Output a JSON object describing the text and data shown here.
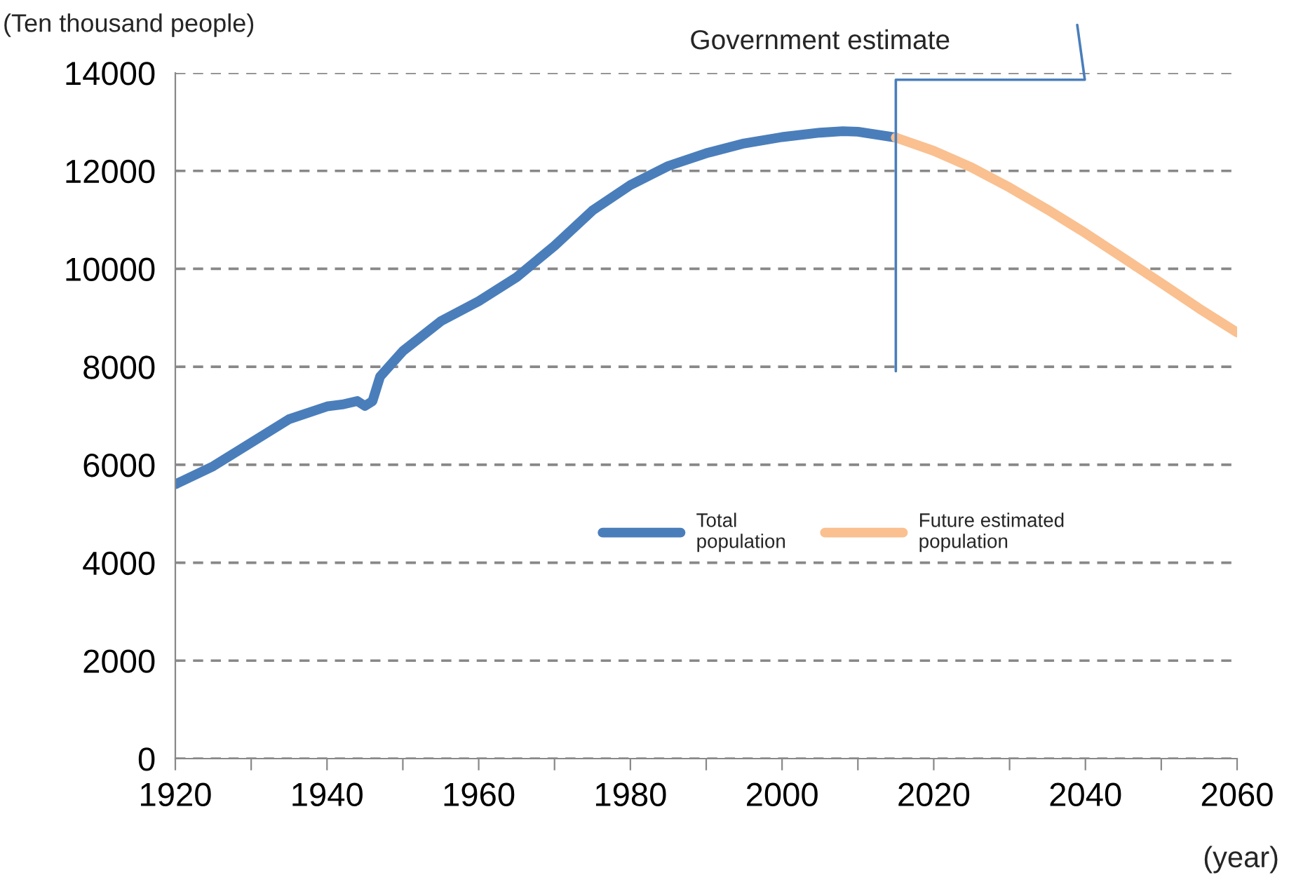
{
  "chart_data": {
    "type": "line",
    "ylabel": "(Ten thousand people)",
    "xlabel": "(year)",
    "series": [
      {
        "name": "Total\npopulation",
        "color": "#4a7ebb",
        "x": [
          1920,
          1925,
          1930,
          1935,
          1940,
          1942,
          1944,
          1945,
          1946,
          1947,
          1950,
          1955,
          1960,
          1965,
          1970,
          1975,
          1980,
          1985,
          1990,
          1995,
          2000,
          2005,
          2008,
          2010,
          2015
        ],
        "values": [
          5600,
          5970,
          6450,
          6930,
          7190,
          7230,
          7300,
          7200,
          7300,
          7800,
          8320,
          8930,
          9340,
          9830,
          10470,
          11190,
          11710,
          12100,
          12360,
          12560,
          12690,
          12780,
          12810,
          12800,
          12680
        ]
      },
      {
        "name": "Future estimated\npopulation",
        "color": "#fac090",
        "x": [
          2015,
          2020,
          2025,
          2030,
          2035,
          2040,
          2045,
          2050,
          2055,
          2060
        ],
        "values": [
          12680,
          12410,
          12070,
          11660,
          11210,
          10730,
          10220,
          9710,
          9190,
          8700
        ]
      }
    ],
    "xlim": [
      1920,
      2060
    ],
    "xticks": [
      1920,
      {
        "value": 1930,
        "label": null
      },
      1940,
      {
        "value": 1950,
        "label": null
      },
      1960,
      {
        "value": 1970,
        "label": null
      },
      1980,
      {
        "value": 1990,
        "label": null
      },
      2000,
      {
        "value": 2010,
        "label": null
      },
      2020,
      {
        "value": 2030,
        "label": null
      },
      2040,
      {
        "value": 2050,
        "label": null
      },
      2060
    ],
    "ylim": [
      0,
      14000
    ],
    "yticks": [
      0,
      2000,
      4000,
      6000,
      8000,
      10000,
      12000,
      14000
    ],
    "grid": "y",
    "legend": "center",
    "marker": "none",
    "line_style": "solid",
    "ref_lines": [
      {
        "axis": "x",
        "value": 2015,
        "label": "Government estimate",
        "color": "#4a7ebb"
      }
    ]
  }
}
